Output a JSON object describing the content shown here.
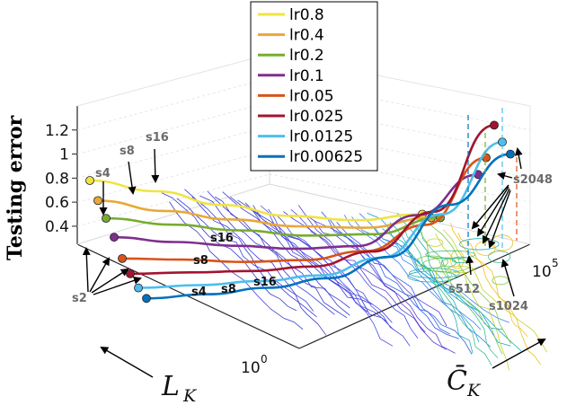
{
  "chart_data": {
    "type": "line",
    "title": "",
    "zlabel": "Testing error",
    "xlabel_symbol": "L",
    "xlabel_sub": "K",
    "ylabel_symbol": "C̄",
    "ylabel_sub": "K",
    "zlim": [
      0.25,
      1.4
    ],
    "z_ticks": [
      "0.4",
      "0.6",
      "0.8",
      "1",
      "1.2"
    ],
    "x_tick_label": "10^0",
    "x_tick_base": "10",
    "x_tick_exp": "0",
    "y_tick_label": "10^5",
    "y_tick_base": "10",
    "y_tick_exp": "5",
    "legend_location": "top-center",
    "series": [
      {
        "name": "lr0.8",
        "color": "#f0e442",
        "values": [
          0.78,
          0.73,
          0.64,
          0.55,
          0.49,
          0.5
        ]
      },
      {
        "name": "lr0.4",
        "color": "#e8a838",
        "values": [
          0.68,
          0.62,
          0.56,
          0.49,
          0.44,
          0.47
        ]
      },
      {
        "name": "lr0.2",
        "color": "#77ac30",
        "values": [
          0.6,
          0.56,
          0.51,
          0.44,
          0.4,
          0.47
        ]
      },
      {
        "name": "lr0.1",
        "color": "#7e2f8e",
        "values": [
          0.51,
          0.47,
          0.43,
          0.38,
          0.36,
          0.56,
          0.83
        ]
      },
      {
        "name": "lr0.05",
        "color": "#d95319",
        "values": [
          0.4,
          0.38,
          0.34,
          0.32,
          0.34,
          0.49,
          0.97
        ]
      },
      {
        "name": "lr0.025",
        "color": "#a2142f",
        "values": [
          0.34,
          0.33,
          0.31,
          0.3,
          0.36,
          0.61,
          1.24
        ]
      },
      {
        "name": "lr0.0125",
        "color": "#4dbeee",
        "values": [
          0.29,
          0.28,
          0.27,
          0.26,
          0.33,
          0.6,
          1.1
        ]
      },
      {
        "name": "lr0.00625",
        "color": "#0072bd",
        "values": [
          0.27,
          0.26,
          0.26,
          0.27,
          0.36,
          0.69,
          1.0
        ]
      }
    ],
    "batch_labels": [
      "s2",
      "s4",
      "s8",
      "s16",
      "s512",
      "s1024",
      "s2048"
    ],
    "mid_labels": [
      "s16",
      "s8",
      "s4",
      "s8",
      "s16"
    ]
  }
}
